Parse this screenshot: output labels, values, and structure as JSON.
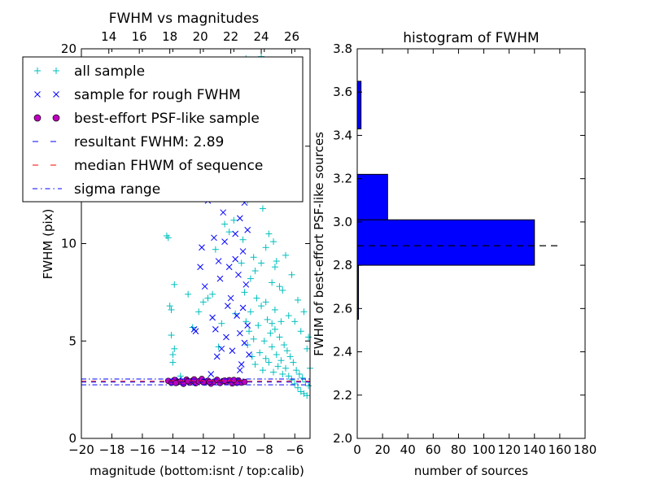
{
  "chart_data": [
    {
      "type": "scatter",
      "title": "FWHM vs magnitudes",
      "xlabel": "magnitude (bottom:isnt / top:calib)",
      "ylabel": "FWHM (pix)",
      "xlim": [
        -20,
        -5
      ],
      "ylim": [
        0,
        20
      ],
      "xticks": [
        -20,
        -18,
        -16,
        -14,
        -12,
        -10,
        -8,
        -6
      ],
      "xtick_labels": [
        "−20",
        "−18",
        "−16",
        "−14",
        "−12",
        "−10",
        "−8",
        "−6"
      ],
      "yticks": [
        0,
        5,
        10,
        15,
        20
      ],
      "ytick_labels": [
        "0",
        "5",
        "10",
        "15",
        "20"
      ],
      "top_axis_ticks": [
        14,
        16,
        18,
        20,
        22,
        24,
        26
      ],
      "top_axis_offset": 32.2,
      "grid": false,
      "legend_position": "top-left",
      "legend": [
        {
          "label": "all sample",
          "marker": "+",
          "color": "#00bfbf"
        },
        {
          "label": "sample for rough FWHM",
          "marker": "x",
          "color": "#0000ff"
        },
        {
          "label": "best-effort PSF-like sample",
          "marker": "o",
          "color": "#bf00bf"
        },
        {
          "label": "resultant FWHM: 2.89",
          "marker": "dashed",
          "color": "#0000ff"
        },
        {
          "label": "median FHWM of sequence",
          "marker": "dashed",
          "color": "#ff0000"
        },
        {
          "label": "sigma range",
          "marker": "dashdot",
          "color": "#0000ff"
        }
      ],
      "reference_lines": {
        "resultant_fwhm": 2.89,
        "median_fwhm": 2.89,
        "sigma_range": [
          2.75,
          3.05
        ]
      },
      "series": [
        {
          "name": "all sample",
          "color": "#00bfbf",
          "points": [
            [
              -14.4,
              10.4
            ],
            [
              -14.3,
              10.3
            ],
            [
              -14.2,
              6.8
            ],
            [
              -14.1,
              6.6
            ],
            [
              -14.1,
              5.3
            ],
            [
              -14.0,
              4.3
            ],
            [
              -14.0,
              3.9
            ],
            [
              -13.9,
              7.9
            ],
            [
              -13.9,
              4.6
            ],
            [
              -13.5,
              3.2
            ],
            [
              -13.0,
              7.4
            ],
            [
              -12.7,
              5.7
            ],
            [
              -12.3,
              6.5
            ],
            [
              -12.0,
              7.0
            ],
            [
              -11.7,
              7.2
            ],
            [
              -11.4,
              7.4
            ],
            [
              -11.2,
              9.7
            ],
            [
              -11.0,
              4.7
            ],
            [
              -10.8,
              5.9
            ],
            [
              -10.6,
              11.0
            ],
            [
              -10.3,
              10.6
            ],
            [
              -10.0,
              11.2
            ],
            [
              -9.9,
              6.4
            ],
            [
              -9.8,
              13.9
            ],
            [
              -9.6,
              14.2
            ],
            [
              -9.5,
              18.9
            ],
            [
              -9.4,
              10.2
            ],
            [
              -9.2,
              19.5
            ],
            [
              -9.1,
              12.2
            ],
            [
              -9.0,
              15.9
            ],
            [
              -8.9,
              8.2
            ],
            [
              -8.8,
              19.1
            ],
            [
              -8.7,
              9.3
            ],
            [
              -8.6,
              17.5
            ],
            [
              -8.5,
              12.4
            ],
            [
              -8.4,
              14.0
            ],
            [
              -8.3,
              16.4
            ],
            [
              -8.2,
              19.6
            ],
            [
              -8.1,
              11.8
            ],
            [
              -8.0,
              13.2
            ],
            [
              -7.9,
              9.8
            ],
            [
              -7.8,
              15.5
            ],
            [
              -7.7,
              10.5
            ],
            [
              -7.6,
              12.5
            ],
            [
              -7.5,
              8.0
            ],
            [
              -7.4,
              10.1
            ],
            [
              -7.3,
              8.8
            ],
            [
              -7.2,
              9.1
            ],
            [
              -7.0,
              7.8
            ],
            [
              -6.8,
              7.6
            ],
            [
              -6.6,
              9.4
            ],
            [
              -6.4,
              6.3
            ],
            [
              -6.2,
              8.4
            ],
            [
              -6.0,
              6.0
            ],
            [
              -5.8,
              7.1
            ],
            [
              -5.6,
              5.5
            ],
            [
              -5.4,
              6.5
            ],
            [
              -5.2,
              4.6
            ],
            [
              -5.1,
              5.2
            ],
            [
              -5.0,
              3.6
            ],
            [
              -9.5,
              9.0
            ],
            [
              -9.3,
              7.5
            ],
            [
              -9.2,
              6.0
            ],
            [
              -9.1,
              4.8
            ],
            [
              -9.0,
              5.5
            ],
            [
              -8.9,
              6.5
            ],
            [
              -8.8,
              4.2
            ],
            [
              -8.7,
              5.1
            ],
            [
              -8.6,
              3.8
            ],
            [
              -8.5,
              7.2
            ],
            [
              -8.4,
              5.8
            ],
            [
              -8.3,
              4.4
            ],
            [
              -8.2,
              6.8
            ],
            [
              -8.1,
              3.5
            ],
            [
              -8.0,
              5.0
            ],
            [
              -7.9,
              4.1
            ],
            [
              -7.8,
              6.1
            ],
            [
              -7.7,
              3.9
            ],
            [
              -7.6,
              5.4
            ],
            [
              -7.5,
              4.7
            ],
            [
              -7.4,
              3.4
            ],
            [
              -7.3,
              5.6
            ],
            [
              -7.2,
              4.3
            ],
            [
              -7.1,
              3.7
            ],
            [
              -7.0,
              5.2
            ],
            [
              -6.9,
              4.0
            ],
            [
              -6.8,
              3.3
            ],
            [
              -6.7,
              4.8
            ],
            [
              -6.6,
              3.6
            ],
            [
              -6.5,
              4.5
            ],
            [
              -6.4,
              3.2
            ],
            [
              -6.3,
              4.2
            ],
            [
              -6.2,
              3.0
            ],
            [
              -6.1,
              3.9
            ],
            [
              -6.0,
              2.8
            ],
            [
              -5.9,
              3.5
            ],
            [
              -5.8,
              2.6
            ],
            [
              -5.7,
              3.3
            ],
            [
              -5.6,
              2.4
            ],
            [
              -5.5,
              3.1
            ],
            [
              -5.4,
              2.3
            ],
            [
              -5.3,
              2.9
            ],
            [
              -5.2,
              2.2
            ],
            [
              -5.1,
              2.7
            ],
            [
              -7.3,
              6.6
            ],
            [
              -7.9,
              7.0
            ],
            [
              -8.6,
              8.6
            ],
            [
              -8.2,
              9.0
            ],
            [
              -6.9,
              6.0
            ],
            [
              -7.5,
              5.9
            ]
          ]
        },
        {
          "name": "sample for rough FWHM",
          "color": "#0000ff",
          "points": [
            [
              -13.6,
              3.0
            ],
            [
              -12.6,
              5.6
            ],
            [
              -12.5,
              5.5
            ],
            [
              -12.2,
              8.8
            ],
            [
              -12.1,
              9.8
            ],
            [
              -11.9,
              7.8
            ],
            [
              -11.7,
              12.2
            ],
            [
              -11.5,
              3.3
            ],
            [
              -11.4,
              6.2
            ],
            [
              -11.2,
              5.6
            ],
            [
              -11.1,
              4.2
            ],
            [
              -11.0,
              9.1
            ],
            [
              -10.8,
              4.6
            ],
            [
              -10.7,
              11.6
            ],
            [
              -10.6,
              10.1
            ],
            [
              -10.5,
              5.2
            ],
            [
              -10.4,
              6.8
            ],
            [
              -10.3,
              8.8
            ],
            [
              -10.2,
              13.1
            ],
            [
              -10.1,
              4.5
            ],
            [
              -10.0,
              15.8
            ],
            [
              -9.9,
              10.5
            ],
            [
              -9.8,
              12.9
            ],
            [
              -9.8,
              6.3
            ],
            [
              -9.7,
              8.4
            ],
            [
              -9.7,
              16.6
            ],
            [
              -9.6,
              5.4
            ],
            [
              -9.6,
              11.3
            ],
            [
              -9.5,
              14.4
            ],
            [
              -9.5,
              3.8
            ],
            [
              -9.4,
              9.6
            ],
            [
              -9.4,
              6.7
            ],
            [
              -9.3,
              12.1
            ],
            [
              -9.3,
              4.9
            ],
            [
              -9.2,
              15.2
            ],
            [
              -9.2,
              7.9
            ],
            [
              -9.1,
              10.7
            ],
            [
              -9.1,
              5.8
            ],
            [
              -9.0,
              13.4
            ],
            [
              -9.0,
              4.3
            ],
            [
              -10.5,
              14.1
            ],
            [
              -11.3,
              10.3
            ],
            [
              -10.9,
              8.2
            ],
            [
              -10.2,
              7.2
            ],
            [
              -9.9,
              9.2
            ],
            [
              -9.6,
              3.5
            ]
          ]
        },
        {
          "name": "best-effort PSF-like sample",
          "color": "#bf00bf",
          "points": [
            [
              -14.3,
              2.95
            ],
            [
              -14.1,
              2.85
            ],
            [
              -13.9,
              3.0
            ],
            [
              -13.7,
              2.88
            ],
            [
              -13.5,
              2.92
            ],
            [
              -13.3,
              2.8
            ],
            [
              -13.1,
              3.02
            ],
            [
              -12.9,
              2.86
            ],
            [
              -12.7,
              2.97
            ],
            [
              -12.5,
              2.83
            ],
            [
              -12.3,
              2.93
            ],
            [
              -12.1,
              3.05
            ],
            [
              -11.9,
              2.87
            ],
            [
              -11.7,
              2.96
            ],
            [
              -11.5,
              2.81
            ],
            [
              -11.3,
              2.91
            ],
            [
              -11.1,
              3.01
            ],
            [
              -10.9,
              2.84
            ],
            [
              -10.7,
              2.94
            ],
            [
              -10.5,
              2.89
            ],
            [
              -10.3,
              2.99
            ],
            [
              -10.1,
              2.82
            ],
            [
              -9.9,
              2.92
            ],
            [
              -9.7,
              2.98
            ],
            [
              -9.5,
              2.86
            ],
            [
              -9.3,
              2.9
            ],
            [
              -13.8,
              2.84
            ],
            [
              -12.6,
              3.03
            ],
            [
              -11.6,
              2.9
            ],
            [
              -10.6,
              2.97
            ],
            [
              -9.8,
              2.85
            ],
            [
              -12.0,
              2.88
            ],
            [
              -13.0,
              2.94
            ],
            [
              -10.0,
              3.0
            ]
          ]
        }
      ]
    },
    {
      "type": "bar",
      "orientation": "horizontal",
      "title": "histogram of FWHM",
      "xlabel": "number of sources",
      "ylabel": "FWHM of best-effort PSF-like sources",
      "xlim": [
        0,
        180
      ],
      "ylim": [
        2.0,
        3.8
      ],
      "xticks": [
        0,
        20,
        40,
        60,
        80,
        100,
        120,
        140,
        160,
        180
      ],
      "yticks": [
        2.0,
        2.2,
        2.4,
        2.6,
        2.8,
        3.0,
        3.2,
        3.4,
        3.6,
        3.8
      ],
      "ytick_labels": [
        "2.0",
        "2.2",
        "2.4",
        "2.6",
        "2.8",
        "3.0",
        "3.2",
        "3.4",
        "3.6",
        "3.8"
      ],
      "bar_color": "#0000ff",
      "bins": [
        [
          2.55,
          2.6
        ],
        [
          2.6,
          2.8
        ],
        [
          2.8,
          3.01
        ],
        [
          3.01,
          3.22
        ],
        [
          3.22,
          3.43
        ],
        [
          3.43,
          3.65
        ]
      ],
      "values": [
        1,
        1,
        140,
        24,
        0,
        3
      ],
      "reference_line": {
        "value": 2.89,
        "x_range": [
          0,
          160
        ],
        "color": "#000000",
        "style": "dashed"
      },
      "grid": false
    }
  ]
}
